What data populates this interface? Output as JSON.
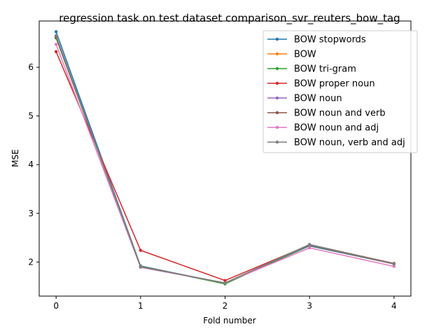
{
  "chart_data": {
    "type": "line",
    "title": "regression task on test dataset comparison_svr_reuters_bow_tag",
    "xlabel": "Fold number",
    "ylabel": "MSE",
    "x": [
      0,
      1,
      2,
      3,
      4
    ],
    "xticks": [
      "0",
      "1",
      "2",
      "3",
      "4"
    ],
    "yticks": [
      "2",
      "3",
      "4",
      "5",
      "6"
    ],
    "xlim": [
      -0.2,
      4.2
    ],
    "ylim": [
      1.3,
      6.95
    ],
    "grid": false,
    "legend": "top-right",
    "series": [
      {
        "name": "BOW stopwords",
        "color": "#1f77b4",
        "values": [
          6.73,
          1.92,
          1.56,
          2.33,
          1.96
        ]
      },
      {
        "name": "BOW",
        "color": "#ff7f0e",
        "values": [
          6.63,
          1.91,
          1.56,
          2.34,
          1.97
        ]
      },
      {
        "name": "BOW tri-gram",
        "color": "#2ca02c",
        "values": [
          6.6,
          1.91,
          1.55,
          2.34,
          1.96
        ]
      },
      {
        "name": "BOW proper noun",
        "color": "#d62728",
        "values": [
          6.32,
          2.24,
          1.62,
          2.35,
          1.96
        ]
      },
      {
        "name": "BOW noun",
        "color": "#9467bd",
        "values": [
          6.63,
          1.9,
          1.57,
          2.35,
          1.97
        ]
      },
      {
        "name": "BOW noun and verb",
        "color": "#8c564b",
        "values": [
          6.62,
          1.9,
          1.57,
          2.36,
          1.97
        ]
      },
      {
        "name": "BOW noun and adj",
        "color": "#e377c2",
        "values": [
          6.47,
          1.89,
          1.57,
          2.29,
          1.91
        ]
      },
      {
        "name": "BOW noun, verb and adj",
        "color": "#7f7f7f",
        "values": [
          6.65,
          1.9,
          1.57,
          2.36,
          1.96
        ]
      }
    ]
  }
}
